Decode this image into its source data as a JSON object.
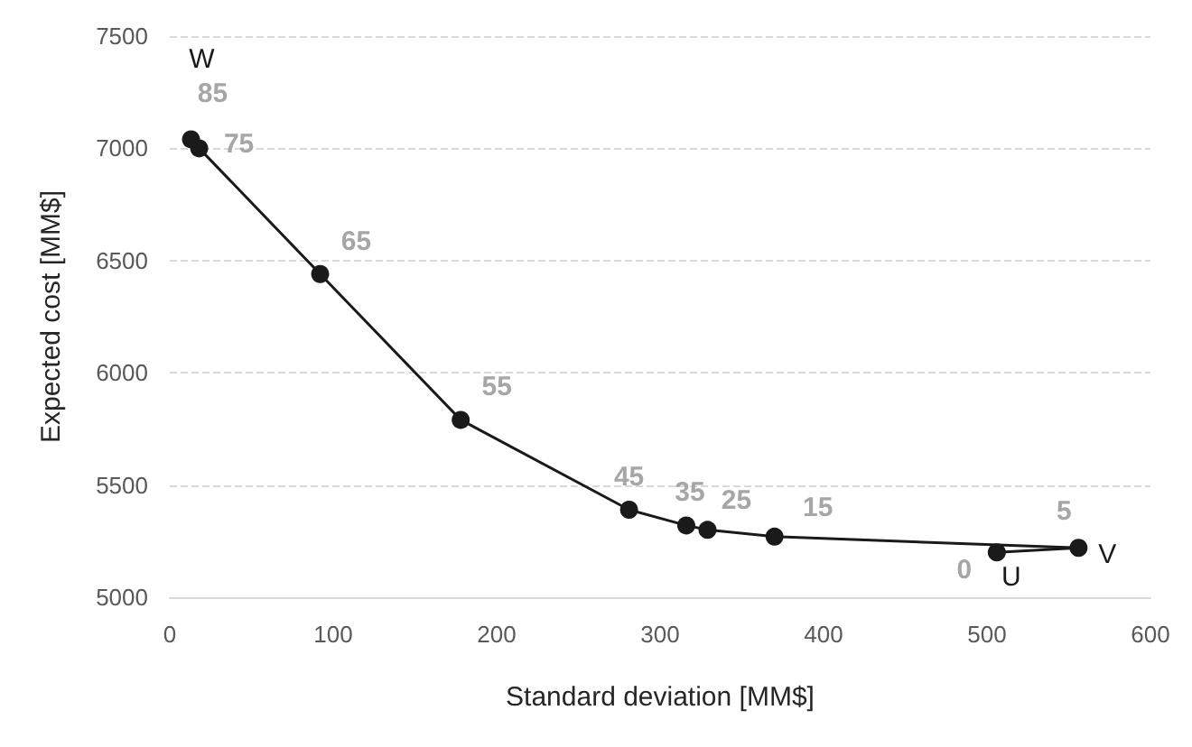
{
  "chart_data": {
    "type": "line",
    "xlabel": "Standard deviation [MM$]",
    "ylabel": "Expected cost [MM$]",
    "series": [
      {
        "color": "#1a1a1a",
        "x": [
          13,
          18,
          92,
          178,
          281,
          316,
          329,
          370,
          556,
          506
        ],
        "values": [
          7040,
          7000,
          6440,
          5790,
          5390,
          5320,
          5300,
          5270,
          5220,
          5200
        ]
      }
    ],
    "xlim": [
      0,
      600
    ],
    "xticks": [
      0,
      100,
      200,
      300,
      400,
      500,
      600
    ],
    "ylim": [
      5000,
      7500
    ],
    "yticks": [
      5000,
      5500,
      6000,
      6500,
      7000,
      7500
    ],
    "grid": "y",
    "marker": "circle",
    "line_style": "solid",
    "annotations": [
      {
        "text": "W",
        "x": 13,
        "y": 7040
      },
      {
        "text": "85",
        "x": 13,
        "y": 7040
      },
      {
        "text": "75",
        "x": 18,
        "y": 7000
      },
      {
        "text": "65",
        "x": 92,
        "y": 6440
      },
      {
        "text": "55",
        "x": 178,
        "y": 5790
      },
      {
        "text": "45",
        "x": 281,
        "y": 5390
      },
      {
        "text": "35",
        "x": 316,
        "y": 5320
      },
      {
        "text": "25",
        "x": 329,
        "y": 5300
      },
      {
        "text": "15",
        "x": 370,
        "y": 5270
      },
      {
        "text": "5",
        "x": 556,
        "y": 5220
      },
      {
        "text": "V",
        "x": 556,
        "y": 5220
      },
      {
        "text": "0",
        "x": 506,
        "y": 5200
      },
      {
        "text": "U",
        "x": 506,
        "y": 5200
      }
    ]
  }
}
